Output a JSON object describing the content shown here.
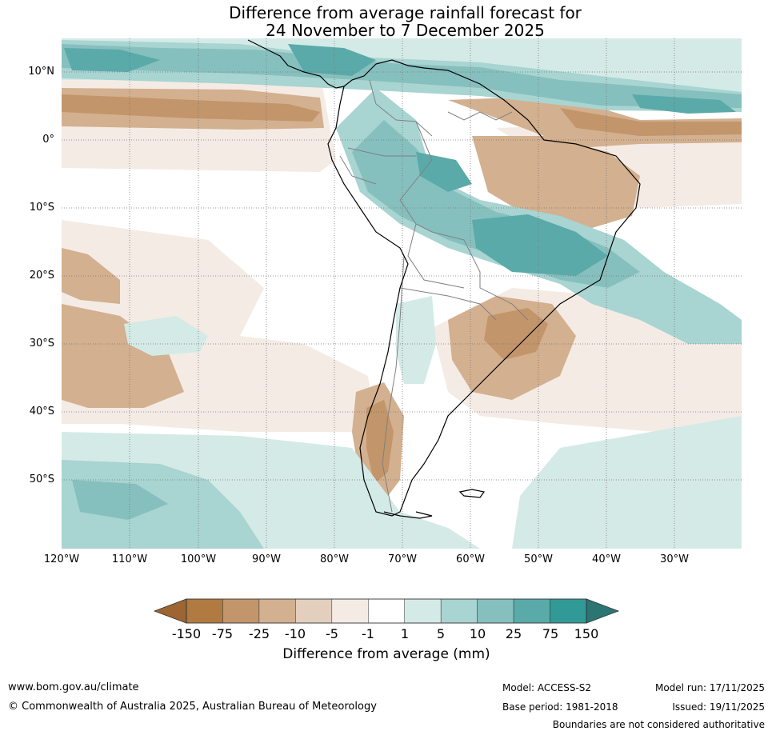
{
  "title": {
    "line1": "Difference from average rainfall forecast for",
    "line2": "24 November to 7 December 2025"
  },
  "map": {
    "lat_labels": [
      "10°N",
      "0°",
      "10°S",
      "20°S",
      "30°S",
      "40°S",
      "50°S"
    ],
    "lon_labels": [
      "120°W",
      "110°W",
      "100°W",
      "90°W",
      "80°W",
      "70°W",
      "60°W",
      "50°W",
      "40°W",
      "30°W"
    ]
  },
  "colorbar": {
    "title": "Difference from average (mm)",
    "ticks": [
      "-150",
      "-75",
      "-25",
      "-10",
      "-5",
      "-1",
      "1",
      "5",
      "10",
      "25",
      "75",
      "150"
    ],
    "colors": [
      "#9c6532",
      "#b07a40",
      "#c2956a",
      "#d3b08f",
      "#e3cfbd",
      "#f4ebe5",
      "#ffffff",
      "#d4eae7",
      "#a8d4d1",
      "#86c0be",
      "#5aaaa9",
      "#329a96",
      "#2b7572"
    ]
  },
  "footer": {
    "website": "www.bom.gov.au/climate",
    "copyright": "© Commonwealth of Australia 2025, Australian Bureau of Meteorology",
    "model": "Model: ACCESS-S2",
    "base_period": "Base period: 1981-2018",
    "model_run": "Model run: 17/11/2025",
    "issued": "Issued: 19/11/2025",
    "disclaimer": "Boundaries are not considered authoritative"
  }
}
